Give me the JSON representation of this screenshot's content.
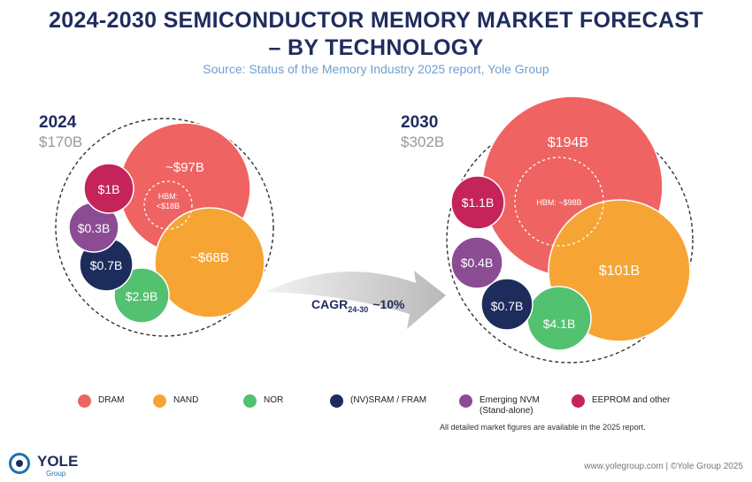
{
  "header": {
    "title_line1": "2024-2030 SEMICONDUCTOR MEMORY MARKET FORECAST",
    "title_line2": "– BY TECHNOLOGY",
    "source": "Source: Status of the Memory Industry 2025 report, Yole Group"
  },
  "chart_data": [
    {
      "type": "bubble",
      "year": "2024",
      "total": "$170B",
      "segments": [
        {
          "name": "DRAM",
          "label": "~$97B",
          "value": 97,
          "color": "#ef6362"
        },
        {
          "name": "NAND",
          "label": "~$68B",
          "value": 68,
          "color": "#f6a534"
        },
        {
          "name": "NOR",
          "label": "$2.9B",
          "value": 2.9,
          "color": "#52c170"
        },
        {
          "name": "(NV)SRAM / FRAM",
          "label": "$0.7B",
          "value": 0.7,
          "color": "#1e2c5c"
        },
        {
          "name": "Emerging NVM (Stand-alone)",
          "label": "$0.3B",
          "value": 0.3,
          "color": "#8b4c93"
        },
        {
          "name": "EEPROM and other",
          "label": "$1B",
          "value": 1,
          "color": "#c4245a"
        }
      ],
      "hbm_label": "HBM:\n<$18B"
    },
    {
      "type": "bubble",
      "year": "2030",
      "total": "$302B",
      "segments": [
        {
          "name": "DRAM",
          "label": "$194B",
          "value": 194,
          "color": "#ef6362"
        },
        {
          "name": "NAND",
          "label": "$101B",
          "value": 101,
          "color": "#f6a534"
        },
        {
          "name": "NOR",
          "label": "$4.1B",
          "value": 4.1,
          "color": "#52c170"
        },
        {
          "name": "(NV)SRAM / FRAM",
          "label": "$0.7B",
          "value": 0.7,
          "color": "#1e2c5c"
        },
        {
          "name": "Emerging NVM (Stand-alone)",
          "label": "$0.4B",
          "value": 0.4,
          "color": "#8b4c93"
        },
        {
          "name": "EEPROM and other",
          "label": "$1.1B",
          "value": 1.1,
          "color": "#c4245a"
        }
      ],
      "hbm_label": "HBM: ~$98B"
    }
  ],
  "cagr": {
    "prefix": "CAGR",
    "subscript": "24-30",
    "value": "~10%"
  },
  "legend": [
    {
      "label": "DRAM",
      "color": "#ef6362"
    },
    {
      "label": "NAND",
      "color": "#f6a534"
    },
    {
      "label": "NOR",
      "color": "#52c170"
    },
    {
      "label": "(NV)SRAM / FRAM",
      "color": "#1e2c5c"
    },
    {
      "label": "Emerging NVM\n(Stand-alone)",
      "color": "#8b4c93"
    },
    {
      "label": "EEPROM and other",
      "color": "#c4245a"
    }
  ],
  "footnote": "All detailed market figures are available in the 2025 report.",
  "footer": {
    "logo_name": "YOLE",
    "logo_sub": "Group",
    "copyright": "www.yolegroup.com | ©Yole Group 2025"
  }
}
